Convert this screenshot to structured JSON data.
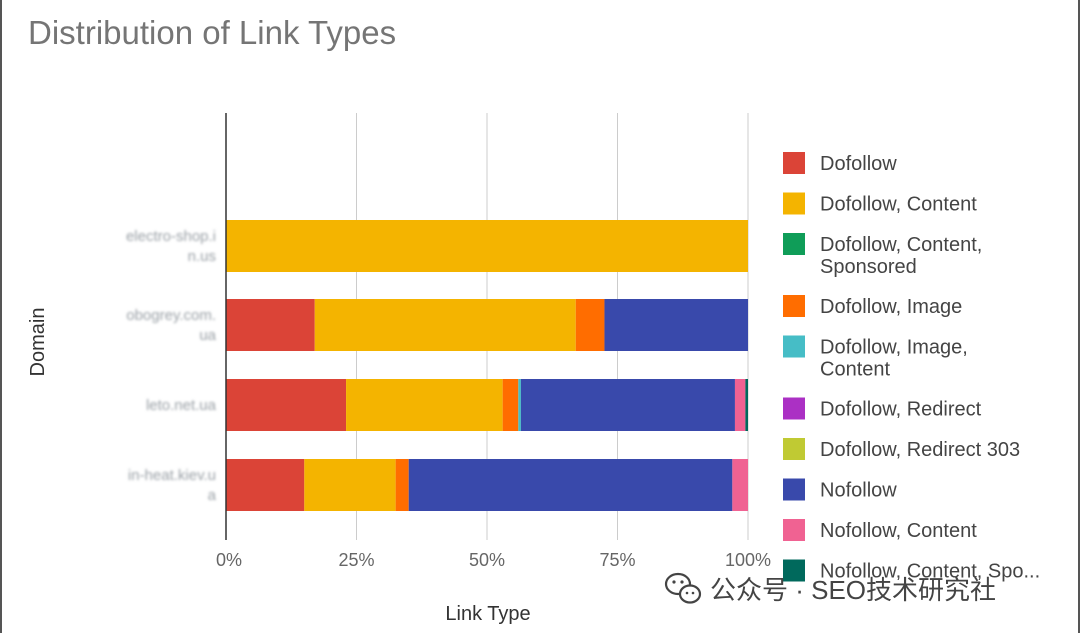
{
  "chart_data": {
    "type": "bar",
    "orientation": "horizontal",
    "stacked": "percent",
    "title": "Distribution of Link Types",
    "xlabel": "Link Type",
    "ylabel": "Domain",
    "xlim": [
      0,
      100
    ],
    "xticks": [
      "0%",
      "25%",
      "50%",
      "75%",
      "100%"
    ],
    "grid": true,
    "legend_position": "right",
    "categories": [
      [
        "electro-shop.i",
        "n.us"
      ],
      [
        "obogrey.com.",
        "ua"
      ],
      [
        "leto.net.ua"
      ],
      [
        "in-heat.kiev.u",
        "a"
      ]
    ],
    "series": [
      {
        "name": "Dofollow",
        "color": "#db4437",
        "values": [
          0,
          17,
          23,
          15
        ]
      },
      {
        "name": "Dofollow, Content",
        "color": "#f4b400",
        "values": [
          100,
          50,
          30,
          17.5
        ]
      },
      {
        "name": "Dofollow, Content, Sponsored",
        "color": "#0f9d58",
        "values": [
          0,
          0,
          0,
          0
        ]
      },
      {
        "name": "Dofollow, Image",
        "color": "#ff6d00",
        "values": [
          0,
          5.5,
          3,
          2.5
        ]
      },
      {
        "name": "Dofollow, Image, Content",
        "color": "#46bdc6",
        "values": [
          0,
          0,
          0.5,
          0
        ]
      },
      {
        "name": "Dofollow, Redirect",
        "color": "#ab30c4",
        "values": [
          0,
          0,
          0,
          0
        ]
      },
      {
        "name": "Dofollow, Redirect 303",
        "color": "#c0ca33",
        "values": [
          0,
          0,
          0,
          0
        ]
      },
      {
        "name": "Nofollow",
        "color": "#3949ab",
        "values": [
          0,
          27.5,
          41,
          62
        ]
      },
      {
        "name": "Nofollow, Content",
        "color": "#f06292",
        "values": [
          0,
          0,
          2,
          3
        ]
      },
      {
        "name": "Nofollow, Content, Spo...",
        "color": "#00695c",
        "values": [
          0,
          0,
          0.5,
          0
        ]
      }
    ]
  },
  "watermark": {
    "text": "公众号 · SEO技术研究社",
    "icon": "wechat-icon",
    "color": "#444444"
  }
}
